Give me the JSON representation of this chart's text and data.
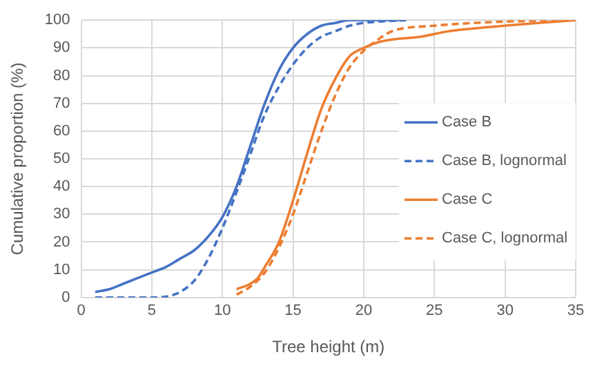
{
  "chart_data": {
    "type": "line",
    "xlabel": "Tree height (m)",
    "ylabel": "Cumulative proportion (%)",
    "xlim": [
      0,
      35
    ],
    "xticks": [
      0,
      5,
      10,
      15,
      20,
      25,
      30,
      35
    ],
    "ylim": [
      0,
      100
    ],
    "yticks": [
      0,
      10,
      20,
      30,
      40,
      50,
      60,
      70,
      80,
      90,
      100
    ],
    "grid": true,
    "legend": "right",
    "marker": "none",
    "series": [
      {
        "name": "Case B",
        "color": "#4472c4",
        "line_style": "solid",
        "x": [
          1,
          2,
          3,
          4,
          5,
          6,
          7,
          8,
          9,
          10,
          11,
          12,
          13,
          14,
          15,
          16,
          17,
          18,
          19,
          23
        ],
        "values": [
          2,
          3,
          5,
          7,
          9,
          11,
          14,
          17,
          22,
          29,
          40,
          55,
          70,
          82,
          90,
          95,
          98,
          99,
          100,
          100
        ]
      },
      {
        "name": "Case B, lognormal",
        "color": "#4472c4",
        "line_style": "dashed",
        "x": [
          1,
          5,
          6,
          7,
          8,
          9,
          10,
          11,
          12,
          13,
          14,
          15,
          16,
          17,
          18,
          19,
          20,
          23
        ],
        "values": [
          0,
          0,
          0.3,
          2,
          6,
          14,
          25,
          38,
          52,
          66,
          76,
          84,
          90,
          94,
          96,
          98,
          99,
          100
        ]
      },
      {
        "name": "Case C",
        "color": "#ed7d31",
        "line_style": "solid",
        "x": [
          11,
          12,
          12.5,
          13,
          14,
          15,
          16,
          17,
          18,
          19,
          20,
          21,
          22,
          24,
          26,
          30,
          35
        ],
        "values": [
          3,
          5,
          7,
          11,
          20,
          35,
          52,
          68,
          79,
          87,
          90,
          92,
          93,
          94,
          96,
          98,
          100
        ]
      },
      {
        "name": "Case C, lognormal",
        "color": "#ed7d31",
        "line_style": "dashed",
        "x": [
          11,
          12,
          13,
          14,
          15,
          16,
          17,
          18,
          19,
          20,
          21,
          22,
          25,
          30,
          35
        ],
        "values": [
          1,
          4,
          9,
          18,
          30,
          45,
          60,
          73,
          83,
          89,
          93,
          96,
          98,
          99.5,
          100
        ]
      }
    ]
  }
}
